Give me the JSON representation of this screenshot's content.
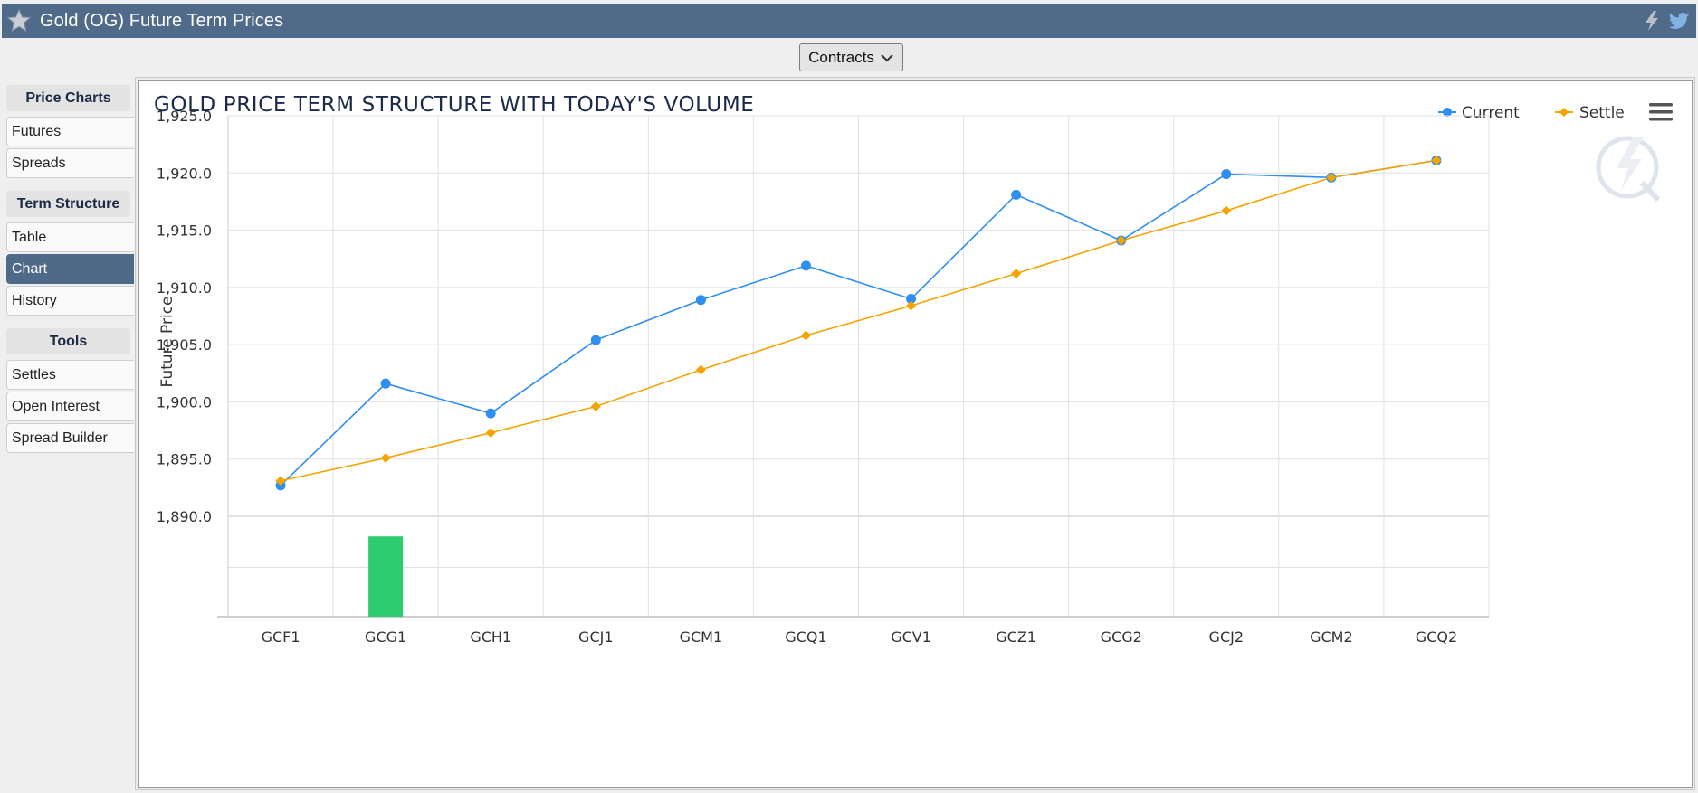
{
  "header": {
    "title": "Gold (OG) Future Term Prices"
  },
  "toolbar": {
    "contracts_label": "Contracts"
  },
  "sidebar": {
    "sections": [
      {
        "heading": "Price Charts",
        "items": [
          "Futures",
          "Spreads"
        ]
      },
      {
        "heading": "Term Structure",
        "items": [
          "Table",
          "Chart",
          "History"
        ]
      },
      {
        "heading": "Tools",
        "items": [
          "Settles",
          "Open Interest",
          "Spread Builder"
        ]
      }
    ],
    "active_item": "Chart"
  },
  "colors": {
    "header_bg": "#506b8a",
    "current": "#2f8ff0",
    "settle": "#f5a300",
    "volume": "#2ecc71",
    "active_nav": "#4f6a89"
  },
  "chart_data": {
    "type": "line",
    "title": "GOLD PRICE TERM STRUCTURE WITH TODAY'S VOLUME",
    "xlabel": "",
    "ylabel": "Future Price",
    "ylim": [
      1890.0,
      1925.0
    ],
    "yticks": [
      "1,890.0",
      "1,895.0",
      "1,900.0",
      "1,905.0",
      "1,910.0",
      "1,915.0",
      "1,920.0",
      "1,925.0"
    ],
    "ytick_values": [
      1890.0,
      1895.0,
      1900.0,
      1905.0,
      1910.0,
      1915.0,
      1920.0,
      1925.0
    ],
    "legend": {
      "placement": "top-right",
      "entries": [
        "Current",
        "Settle"
      ]
    },
    "categories": [
      "GCF1",
      "GCG1",
      "GCH1",
      "GCJ1",
      "GCM1",
      "GCQ1",
      "GCV1",
      "GCZ1",
      "GCG2",
      "GCJ2",
      "GCM2",
      "GCQ2"
    ],
    "series": [
      {
        "name": "Current",
        "marker": "circle",
        "values": [
          1892.7,
          1901.6,
          1899.0,
          1905.4,
          1908.9,
          1911.9,
          1909.0,
          1918.1,
          1914.1,
          1919.9,
          1919.6,
          1921.1
        ]
      },
      {
        "name": "Settle",
        "marker": "diamond",
        "values": [
          1893.1,
          1895.1,
          1897.3,
          1899.6,
          1902.8,
          1905.8,
          1908.4,
          1911.2,
          1914.1,
          1916.7,
          1919.6,
          1921.1
        ]
      }
    ],
    "volume": {
      "name": "Today's Volume",
      "values": [
        0,
        0.8,
        0,
        0,
        0,
        0,
        0,
        0,
        0,
        0,
        0,
        0
      ]
    },
    "grid": true
  }
}
